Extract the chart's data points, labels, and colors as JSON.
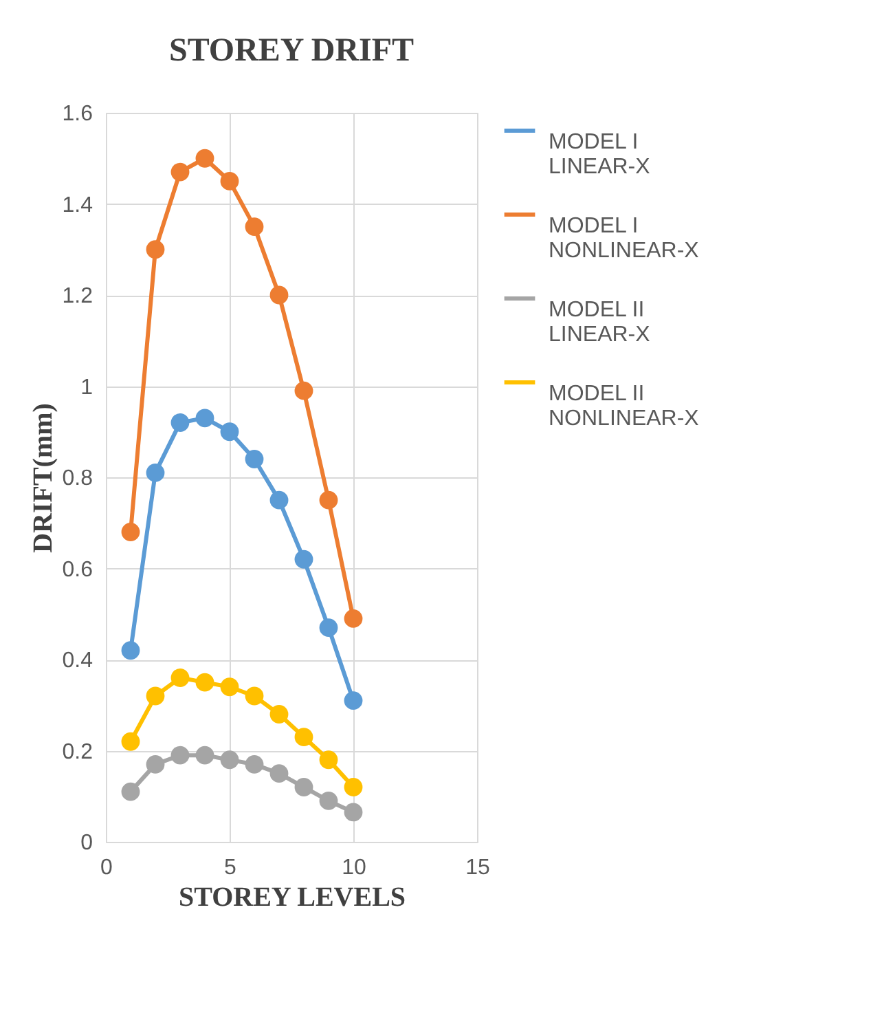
{
  "chart_data": {
    "type": "line",
    "title": "STOREY DRIFT",
    "xlabel": "STOREY LEVELS",
    "ylabel": "DRIFT(mm)",
    "x": [
      1,
      2,
      3,
      4,
      5,
      6,
      7,
      8,
      9,
      10
    ],
    "series": [
      {
        "name": "MODEL I LINEAR-X",
        "color": "#5b9bd5",
        "values": [
          0.42,
          0.81,
          0.92,
          0.93,
          0.9,
          0.84,
          0.75,
          0.62,
          0.47,
          0.31
        ]
      },
      {
        "name": "MODEL I NONLINEAR-X",
        "color": "#ed7d31",
        "values": [
          0.68,
          1.3,
          1.47,
          1.5,
          1.45,
          1.35,
          1.2,
          0.99,
          0.75,
          0.49
        ]
      },
      {
        "name": "MODEL II LINEAR-X",
        "color": "#a5a5a5",
        "values": [
          0.11,
          0.17,
          0.19,
          0.19,
          0.18,
          0.17,
          0.15,
          0.12,
          0.09,
          0.065
        ]
      },
      {
        "name": "MODEL II NONLINEAR-X",
        "color": "#ffc000",
        "values": [
          0.22,
          0.32,
          0.36,
          0.35,
          0.34,
          0.32,
          0.28,
          0.23,
          0.18,
          0.12
        ]
      }
    ],
    "xlim": [
      0,
      15
    ],
    "xticks": [
      0,
      5,
      10,
      15
    ],
    "ylim": [
      0,
      1.6
    ],
    "yticks": [
      0,
      0.2,
      0.4,
      0.6,
      0.8,
      1,
      1.2,
      1.4,
      1.6
    ],
    "grid": true,
    "legend": "right",
    "marker": "circle",
    "line_style": "solid"
  }
}
